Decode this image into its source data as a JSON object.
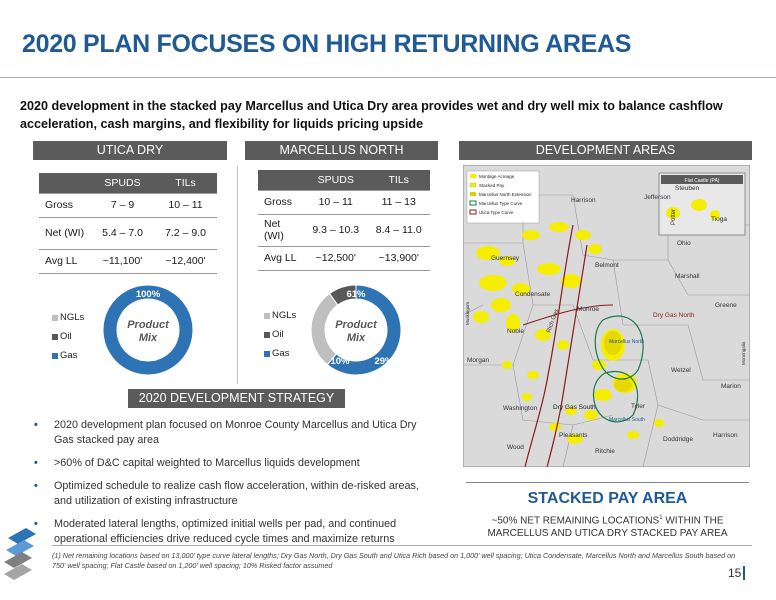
{
  "title": "2020 Plan Focuses on High Returning Areas",
  "title_display": "2020 PLAN FOCUSES ON HIGH RETURNING AREAS",
  "subtitle": "2020 development in the stacked pay Marcellus and Utica Dry area provides wet and dry well mix to balance cashflow acceleration, cash margins, and flexibility for liquids pricing upside",
  "sections": {
    "utica": "UTICA DRY",
    "marcellus": "MARCELLUS NORTH",
    "areas": "DEVELOPMENT AREAS",
    "strategy": "2020 DEVELOPMENT STRATEGY"
  },
  "tables": {
    "columns": [
      "SPUDS",
      "TILs"
    ],
    "utica": {
      "rows": [
        {
          "label": "Gross",
          "spuds": "7 – 9",
          "tils": "10 – 11"
        },
        {
          "label": "Net (WI)",
          "spuds": "5.4 – 7.0",
          "tils": "7.2 – 9.0"
        },
        {
          "label": "Avg LL",
          "spuds": "~11,100'",
          "tils": "~12,400'"
        }
      ]
    },
    "marcellus": {
      "rows": [
        {
          "label": "Gross",
          "spuds": "10 – 11",
          "tils": "11 – 13"
        },
        {
          "label": "Net (WI)",
          "spuds": "9.3 – 10.3",
          "tils": "8.4 – 11.0"
        },
        {
          "label": "Avg LL",
          "spuds": "~12,500'",
          "tils": "~13,900'"
        }
      ]
    }
  },
  "chart_data": [
    {
      "type": "pie",
      "title": "Product Mix",
      "categories": [
        "NGLs",
        "Oil",
        "Gas"
      ],
      "values": [
        0,
        0,
        100
      ],
      "data_labels": [
        "",
        "",
        "100%"
      ],
      "legend": "left"
    },
    {
      "type": "pie",
      "title": "Product Mix",
      "categories": [
        "NGLs",
        "Oil",
        "Gas"
      ],
      "values": [
        29,
        10,
        61
      ],
      "data_labels": [
        "29%",
        "10%",
        "61%"
      ],
      "legend": "left"
    }
  ],
  "colors": {
    "title": "#1f5a96",
    "header": "#5b5b5b",
    "gas": "#2e74b5",
    "oil": "#595959",
    "ngl": "#bfbfbf"
  },
  "map": {
    "legend": [
      "Montage Acreage",
      "Stacked Pay",
      "Marcellus North Extension",
      "Marcellus Type Curve",
      "Utica Type Curve"
    ],
    "inset_label": "Flat Castle (PA)",
    "labels": [
      "Steuben",
      "Jefferson",
      "Harrison",
      "Potter",
      "Tioga",
      "Ohio",
      "Guernsey",
      "Belmont",
      "Condensate",
      "Marshall",
      "Greene",
      "Monroe",
      "Rich Gas",
      "Noble",
      "Dry Gas North",
      "Marcellus North",
      "Morgan",
      "Muskingum",
      "Monongalia",
      "Wetzel",
      "Marion",
      "Washington",
      "Dry Gas South",
      "Tyler",
      "Marcellus South",
      "Harrison",
      "Pleasants",
      "Doddridge",
      "Wood",
      "Ritchie"
    ]
  },
  "strategy": [
    "2020 development plan focused on Monroe County Marcellus and Utica Dry Gas stacked pay area",
    ">60% of D&C capital weighted to Marcellus liquids development",
    "Optimized schedule to realize cash flow acceleration, within de-risked areas, and utilization of existing infrastructure",
    "Moderated lateral lengths, optimized initial wells per pad, and continued operational efficiencies drive reduced cycle times and maximize returns"
  ],
  "stacked_pay": {
    "title": "STACKED PAY AREA",
    "line1": "~50% NET REMAINING LOCATIONS",
    "sup": "1",
    "line1b": " WITHIN THE",
    "line2": "MARCELLUS AND UTICA DRY STACKED PAY AREA"
  },
  "footnote": "(1) Net remaining locations based on 13,000' type curve lateral lengths; Dry Gas North, Dry Gas South and Utica Rich based on 1,000' well spacing; Utica Condensate, Marcellus North and Marcellus South based on 750' well spacing; Flat Castle based on 1,200' well spacing; 10% Risked factor assumed",
  "page_number": "15",
  "bullet_glyph": "•"
}
